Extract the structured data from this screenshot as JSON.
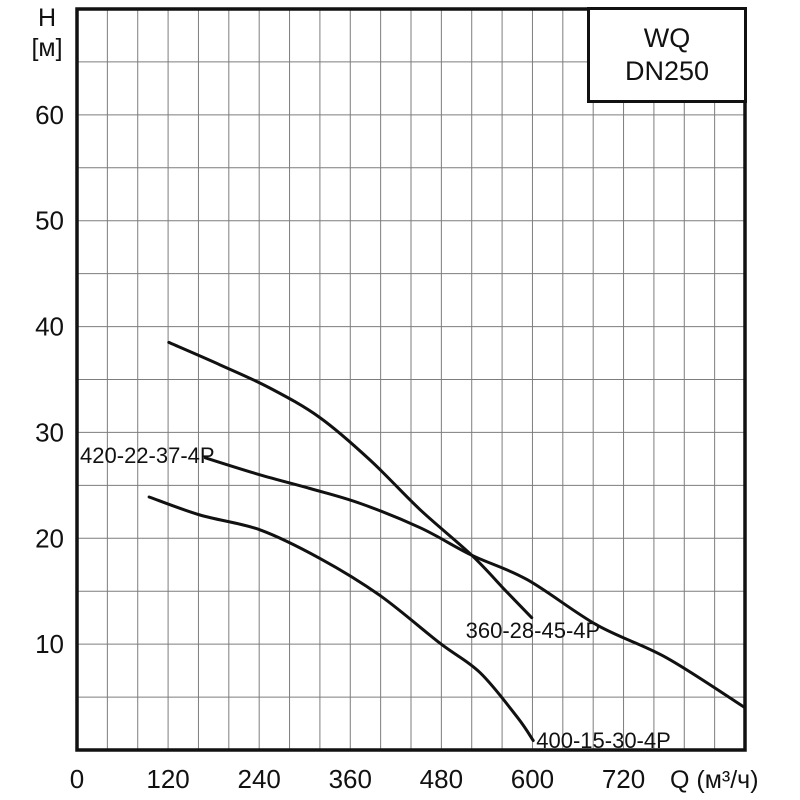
{
  "chart_data": {
    "type": "line",
    "title": "",
    "legend_box": {
      "lines": [
        "WQ",
        "DN250"
      ]
    },
    "y_axis": {
      "label": "H",
      "unit": "[м]",
      "ticks": [
        10,
        20,
        30,
        40,
        50,
        60
      ],
      "range": [
        0,
        70
      ],
      "grid_step": 5
    },
    "x_axis": {
      "label": "Q",
      "unit": "(м³/ч)",
      "ticks": [
        0,
        120,
        240,
        360,
        480,
        600,
        720
      ],
      "range": [
        0,
        880
      ],
      "grid_step": 40
    },
    "grid": "on",
    "series": [
      {
        "name": "360-28-45-4P",
        "points": [
          [
            121,
            38.5
          ],
          [
            188,
            36.4
          ],
          [
            254,
            34.2
          ],
          [
            320,
            31.4
          ],
          [
            386,
            27.4
          ],
          [
            452,
            22.7
          ],
          [
            520,
            18.4
          ],
          [
            564,
            15.1
          ],
          [
            599,
            12.5
          ]
        ],
        "label_anchor": {
          "q": 512,
          "h": 10.6,
          "align": "start"
        }
      },
      {
        "name": "420-22-37-4P",
        "points": [
          [
            169,
            27.6
          ],
          [
            241,
            26.0
          ],
          [
            307,
            24.7
          ],
          [
            373,
            23.3
          ],
          [
            452,
            21.0
          ],
          [
            520,
            18.4
          ],
          [
            593,
            16.1
          ],
          [
            685,
            11.8
          ],
          [
            777,
            8.7
          ],
          [
            880,
            4.0
          ]
        ],
        "label_anchor": {
          "q": 4,
          "h": 27.1,
          "align": "start"
        }
      },
      {
        "name": "400-15-30-4P",
        "points": [
          [
            95,
            23.9
          ],
          [
            162,
            22.2
          ],
          [
            241,
            20.8
          ],
          [
            320,
            18.1
          ],
          [
            399,
            14.6
          ],
          [
            478,
            10.1
          ],
          [
            531,
            7.3
          ],
          [
            580,
            3.1
          ],
          [
            601,
            0.9
          ]
        ],
        "label_anchor": {
          "q": 605,
          "h": 0.2,
          "align": "start"
        }
      }
    ],
    "colors": {
      "curve": "#111111",
      "grid": "#7d7d7d",
      "border": "#111111",
      "text": "#111111",
      "background": "#ffffff"
    }
  }
}
